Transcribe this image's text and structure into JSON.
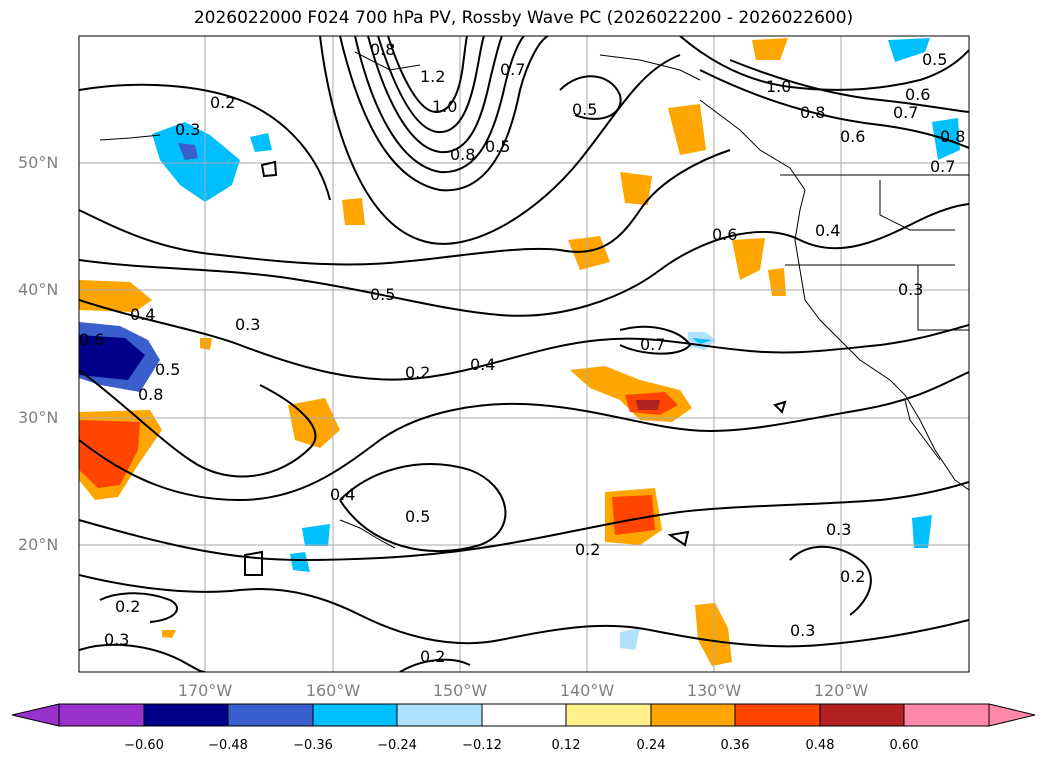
{
  "title": "2026022000 F024 700 hPa PV, Rossby Wave PC (2026022200 - 2026022600)",
  "lat_labels": [
    "50°N",
    "40°N",
    "30°N",
    "20°N"
  ],
  "lon_labels": [
    "170°W",
    "160°W",
    "150°W",
    "140°W",
    "130°W",
    "120°W"
  ],
  "contour_labels": [
    "0.2",
    "0.3",
    "0.8",
    "1.2",
    "1.0",
    "0.8",
    "0.5",
    "0.7",
    "0.5",
    "1.0",
    "0.8",
    "0.6",
    "0.5",
    "0.6",
    "0.7",
    "0.8",
    "0.7",
    "0.4",
    "0.6",
    "0.3",
    "0.5",
    "0.7",
    "0.4",
    "0.6",
    "0.5",
    "0.8",
    "0.3",
    "0.2",
    "0.4",
    "0.4",
    "0.5",
    "0.2",
    "0.3",
    "0.2",
    "0.2",
    "0.3",
    "0.3",
    "0.2"
  ],
  "colorbar": {
    "ticks": [
      "−0.60",
      "−0.48",
      "−0.36",
      "−0.24",
      "−0.12",
      "0.12",
      "0.24",
      "0.36",
      "0.48",
      "0.60"
    ],
    "colors": [
      "#9932cc",
      "#00008b",
      "#3a5fcd",
      "#00bfff",
      "#b0e2ff",
      "#ffffff",
      "#fff08c",
      "#ffa500",
      "#ff4500",
      "#b22222",
      "#ff88aa"
    ]
  }
}
